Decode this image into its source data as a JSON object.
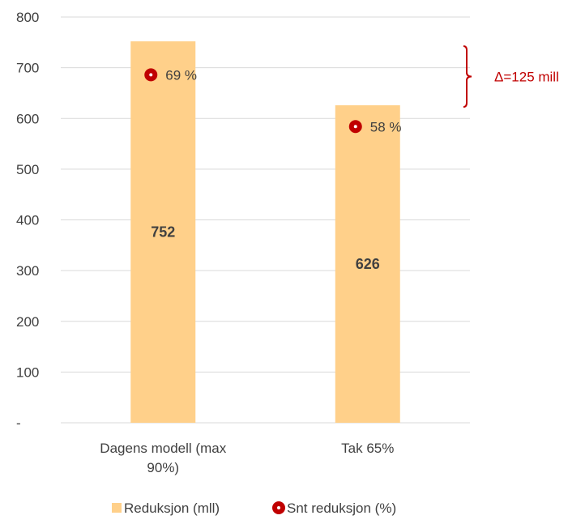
{
  "chart_data": {
    "type": "bar",
    "categories": [
      [
        "Dagens modell (max",
        "90%)"
      ],
      [
        "Tak 65%"
      ]
    ],
    "ylim": [
      0,
      800
    ],
    "yticks": [
      0,
      100,
      200,
      300,
      400,
      500,
      600,
      700,
      800
    ],
    "ytick_labels": [
      "-",
      "100",
      "200",
      "300",
      "400",
      "500",
      "600",
      "700",
      "800"
    ],
    "grid": true,
    "series": [
      {
        "name": "Reduksjon (mll)",
        "type": "bar",
        "values": [
          752,
          626
        ],
        "value_labels": [
          "752",
          "626"
        ],
        "color": "#ffd08a"
      },
      {
        "name": "Snt reduksjon (%)",
        "type": "scatter",
        "y_positions": [
          686,
          584
        ],
        "value_labels": [
          "69 %",
          "58 %"
        ],
        "color": "#c00000"
      }
    ],
    "annotation": {
      "text": "Δ=125 mill",
      "from": 626,
      "to": 752,
      "color": "#c00000"
    },
    "legend_position": "bottom"
  }
}
